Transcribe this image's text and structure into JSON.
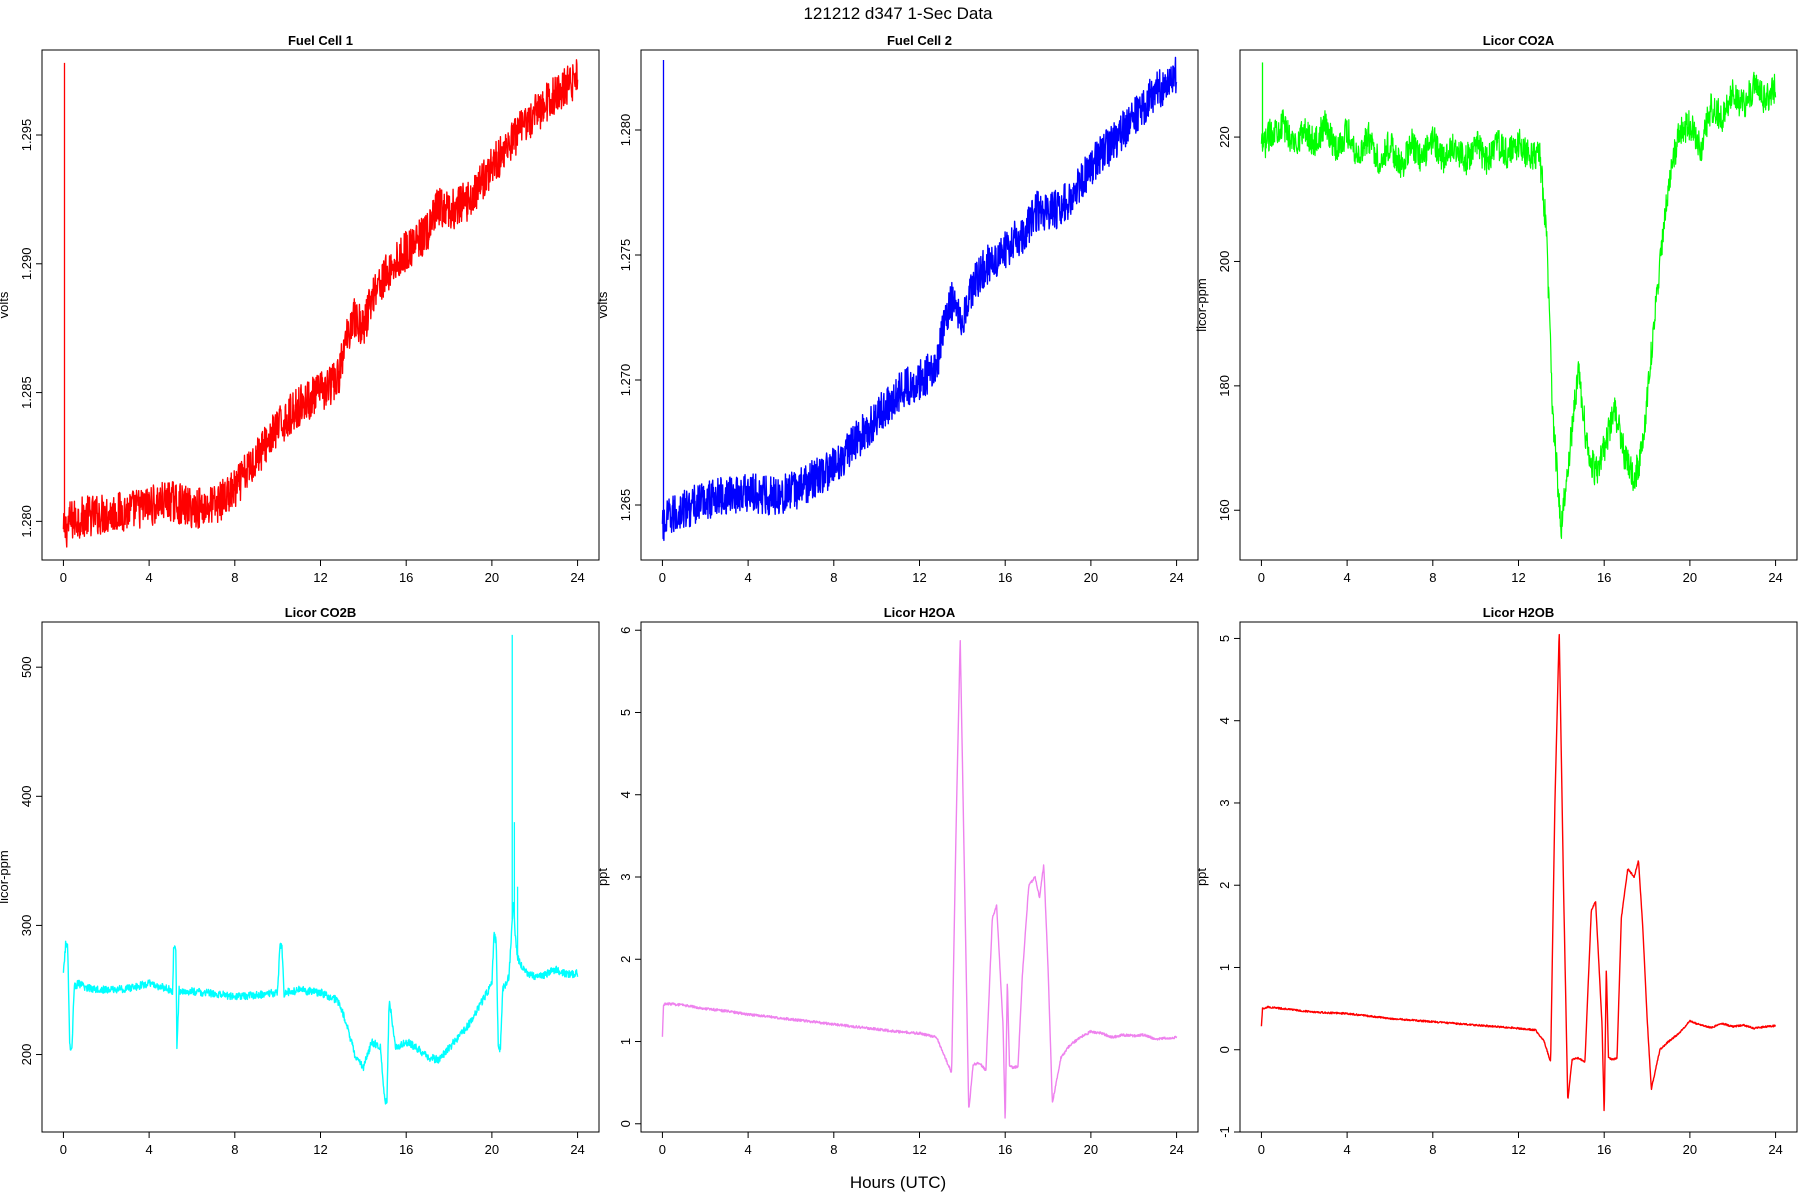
{
  "figure": {
    "suptitle": "121212   d347   1-Sec Data",
    "xlabel": "Hours (UTC)"
  },
  "chart_data": [
    {
      "type": "line",
      "title": "Fuel Cell 1",
      "xlabel": "",
      "ylabel": "volts",
      "xlim": [
        -1,
        25
      ],
      "ylim": [
        1.2785,
        1.2983
      ],
      "xticks": [
        "0",
        "4",
        "8",
        "12",
        "16",
        "20",
        "24"
      ],
      "yticks": [
        "1.280",
        "1.285",
        "1.290",
        "1.295"
      ],
      "grid": false,
      "color": "#ff0000",
      "noise": 0.0008,
      "spikes": [
        [
          0.05,
          1.2978
        ]
      ],
      "x": [
        0,
        0.3,
        1,
        2,
        3,
        4,
        5,
        6,
        7,
        8,
        9,
        10,
        11,
        12,
        12.8,
        13.2,
        13.5,
        14,
        14.5,
        15,
        15.5,
        16,
        17,
        17.5,
        18,
        19,
        20,
        21,
        22,
        23,
        24
      ],
      "y": [
        1.2795,
        1.28,
        1.2802,
        1.2803,
        1.2804,
        1.2806,
        1.2808,
        1.2805,
        1.2806,
        1.2812,
        1.2825,
        1.2836,
        1.2845,
        1.285,
        1.2855,
        1.287,
        1.288,
        1.2875,
        1.289,
        1.2895,
        1.29,
        1.2905,
        1.2912,
        1.2922,
        1.292,
        1.2925,
        1.2938,
        1.2948,
        1.2958,
        1.2966,
        1.2972
      ],
      "series": []
    },
    {
      "type": "line",
      "title": "Fuel Cell 2",
      "xlabel": "",
      "ylabel": "volts",
      "xlim": [
        -1,
        25
      ],
      "ylim": [
        1.2628,
        1.2832
      ],
      "xticks": [
        "0",
        "4",
        "8",
        "12",
        "16",
        "20",
        "24"
      ],
      "yticks": [
        "1.265",
        "1.270",
        "1.275",
        "1.280"
      ],
      "grid": false,
      "color": "#0000ff",
      "noise": 0.0008,
      "spikes": [
        [
          0.05,
          1.2828
        ]
      ],
      "x": [
        0,
        0.3,
        1,
        2,
        3,
        4,
        5,
        6,
        7,
        8,
        9,
        10,
        11,
        12,
        12.8,
        13.2,
        13.5,
        14,
        14.5,
        15,
        15.5,
        16,
        17,
        17.5,
        18,
        19,
        20,
        21,
        22,
        23,
        24
      ],
      "y": [
        1.264,
        1.2645,
        1.2648,
        1.2652,
        1.2654,
        1.2655,
        1.2654,
        1.2655,
        1.266,
        1.2665,
        1.2675,
        1.2685,
        1.2695,
        1.27,
        1.2705,
        1.2725,
        1.2732,
        1.2725,
        1.2738,
        1.2745,
        1.2748,
        1.2752,
        1.276,
        1.2768,
        1.2766,
        1.2772,
        1.2785,
        1.2795,
        1.2805,
        1.2815,
        1.2822
      ],
      "series": []
    },
    {
      "type": "line",
      "title": "Licor CO2A",
      "xlabel": "",
      "ylabel": "licor-ppm",
      "xlim": [
        -1,
        25
      ],
      "ylim": [
        152,
        234
      ],
      "xticks": [
        "0",
        "4",
        "8",
        "12",
        "16",
        "20",
        "24"
      ],
      "yticks": [
        "160",
        "180",
        "200",
        "220"
      ],
      "grid": false,
      "color": "#00ff00",
      "noise": 2.5,
      "spikes": [
        [
          0.05,
          232
        ]
      ],
      "x": [
        0,
        0.5,
        1,
        1.5,
        2,
        2.5,
        3,
        3.5,
        4,
        4.5,
        5,
        5.5,
        6,
        6.5,
        7,
        7.5,
        8,
        8.5,
        9,
        9.5,
        10,
        10.5,
        11,
        11.5,
        12,
        12.5,
        13,
        13.3,
        13.6,
        14,
        14.4,
        14.8,
        15.2,
        15.6,
        16,
        16.5,
        17,
        17.4,
        17.8,
        18.2,
        18.6,
        19,
        19.5,
        20,
        20.5,
        21,
        21.5,
        22,
        22.5,
        23,
        23.5,
        24
      ],
      "y": [
        218,
        221,
        222,
        219,
        221,
        219,
        222,
        218,
        221,
        217,
        220,
        216,
        219,
        215,
        219,
        216,
        220,
        216,
        219,
        216,
        219,
        216,
        219,
        217,
        219,
        217,
        217,
        205,
        175,
        157,
        170,
        183,
        170,
        166,
        170,
        176,
        168,
        165,
        170,
        185,
        200,
        212,
        221,
        222,
        218,
        225,
        223,
        227,
        225,
        228,
        226,
        228
      ],
      "series": []
    },
    {
      "type": "line",
      "title": "Licor CO2B",
      "xlabel": "",
      "ylabel": "licor-ppm",
      "xlim": [
        -1,
        25
      ],
      "ylim": [
        140,
        535
      ],
      "xticks": [
        "0",
        "4",
        "8",
        "12",
        "16",
        "20",
        "24"
      ],
      "yticks": [
        "200",
        "300",
        "400",
        "500"
      ],
      "grid": false,
      "color": "#00ffff",
      "noise": 3,
      "spikes": [
        [
          20.95,
          525
        ],
        [
          21.05,
          380
        ],
        [
          21.2,
          330
        ]
      ],
      "x": [
        0,
        0.1,
        0.2,
        0.3,
        0.4,
        0.5,
        0.7,
        1,
        2,
        3,
        4,
        5,
        5.1,
        5.15,
        5.25,
        5.3,
        5.4,
        5.5,
        6,
        7,
        8,
        9,
        10,
        10.1,
        10.2,
        10.3,
        10.4,
        11,
        12,
        12.8,
        13.2,
        13.6,
        14,
        14.4,
        14.8,
        15,
        15.1,
        15.2,
        15.3,
        15.5,
        16,
        16.5,
        17,
        17.5,
        18,
        19,
        19.5,
        20,
        20.1,
        20.2,
        20.3,
        20.4,
        20.5,
        20.8,
        21,
        21.1,
        21.2,
        21.5,
        22,
        22.5,
        23,
        23.5,
        24
      ],
      "y": [
        262,
        285,
        284,
        205,
        205,
        252,
        255,
        252,
        250,
        251,
        255,
        250,
        248,
        285,
        282,
        203,
        250,
        248,
        249,
        247,
        245,
        246,
        248,
        285,
        283,
        247,
        248,
        250,
        248,
        242,
        225,
        200,
        190,
        210,
        205,
        165,
        163,
        240,
        232,
        205,
        210,
        205,
        198,
        196,
        205,
        225,
        240,
        255,
        292,
        288,
        205,
        205,
        250,
        260,
        320,
        290,
        275,
        265,
        260,
        262,
        266,
        262,
        263
      ],
      "series": []
    },
    {
      "type": "line",
      "title": "Licor H2OA",
      "xlabel": "",
      "ylabel": "ppt",
      "xlim": [
        -1,
        25
      ],
      "ylim": [
        -0.1,
        6.1
      ],
      "xticks": [
        "0",
        "4",
        "8",
        "12",
        "16",
        "20",
        "24"
      ],
      "yticks": [
        "0",
        "1",
        "2",
        "3",
        "4",
        "5",
        "6"
      ],
      "grid": false,
      "color": "#ee82ee",
      "noise": 0.015,
      "spikes": [],
      "x": [
        0,
        0.05,
        0.3,
        1,
        2,
        3,
        4,
        5,
        6,
        7,
        8,
        9,
        10,
        11,
        12,
        12.8,
        13.2,
        13.5,
        13.7,
        13.9,
        14.1,
        14.3,
        14.5,
        14.8,
        15.1,
        15.4,
        15.6,
        15.9,
        16.0,
        16.1,
        16.2,
        16.4,
        16.6,
        16.8,
        17.1,
        17.4,
        17.6,
        17.8,
        18.0,
        18.2,
        18.6,
        19,
        19.5,
        20,
        20.5,
        21,
        21.5,
        22,
        22.5,
        23,
        23.5,
        24
      ],
      "y": [
        1.05,
        1.45,
        1.46,
        1.44,
        1.4,
        1.37,
        1.33,
        1.3,
        1.27,
        1.24,
        1.21,
        1.18,
        1.15,
        1.12,
        1.1,
        1.05,
        0.8,
        0.62,
        3.5,
        5.9,
        3.0,
        0.15,
        0.72,
        0.74,
        0.65,
        2.5,
        2.65,
        1.2,
        0.0,
        1.75,
        0.7,
        0.68,
        0.7,
        1.8,
        2.9,
        3.0,
        2.75,
        3.15,
        1.9,
        0.25,
        0.8,
        0.95,
        1.05,
        1.12,
        1.1,
        1.05,
        1.08,
        1.07,
        1.08,
        1.03,
        1.04,
        1.05
      ],
      "series": []
    },
    {
      "type": "line",
      "title": "Licor H2OB",
      "xlabel": "",
      "ylabel": "ppt",
      "xlim": [
        -1,
        25
      ],
      "ylim": [
        -1.0,
        5.2
      ],
      "xticks": [
        "0",
        "4",
        "8",
        "12",
        "16",
        "20",
        "24"
      ],
      "yticks": [
        "-1",
        "0",
        "1",
        "2",
        "3",
        "4",
        "5"
      ],
      "grid": false,
      "color": "#ff0000",
      "noise": 0.01,
      "spikes": [],
      "x": [
        0,
        0.05,
        0.3,
        1,
        2,
        3,
        4,
        5,
        6,
        7,
        8,
        9,
        10,
        11,
        12,
        12.8,
        13.2,
        13.5,
        13.7,
        13.9,
        14.1,
        14.3,
        14.5,
        14.8,
        15.1,
        15.4,
        15.6,
        15.9,
        16.0,
        16.1,
        16.2,
        16.4,
        16.6,
        16.8,
        17.1,
        17.4,
        17.6,
        17.8,
        18.0,
        18.2,
        18.6,
        19,
        19.5,
        20,
        20.5,
        21,
        21.5,
        22,
        22.5,
        23,
        23.5,
        24
      ],
      "y": [
        0.28,
        0.5,
        0.52,
        0.5,
        0.47,
        0.45,
        0.44,
        0.41,
        0.38,
        0.36,
        0.34,
        0.32,
        0.3,
        0.28,
        0.26,
        0.24,
        0.1,
        -0.15,
        3.0,
        5.1,
        2.0,
        -0.62,
        -0.12,
        -0.1,
        -0.15,
        1.7,
        1.8,
        0.3,
        -0.8,
        1.0,
        -0.1,
        -0.12,
        -0.1,
        1.6,
        2.2,
        2.1,
        2.3,
        1.5,
        0.4,
        -0.48,
        0.0,
        0.1,
        0.2,
        0.35,
        0.3,
        0.27,
        0.32,
        0.28,
        0.3,
        0.26,
        0.28,
        0.29
      ],
      "series": []
    }
  ]
}
